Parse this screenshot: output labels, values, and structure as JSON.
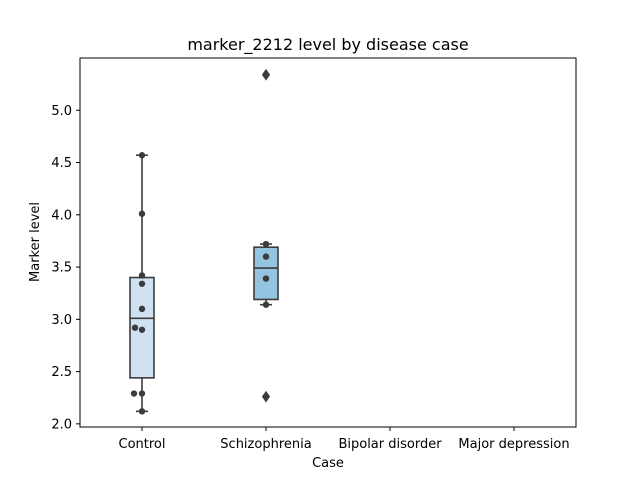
{
  "chart_data": {
    "type": "box",
    "title": "marker_2212 level by disease case",
    "xlabel": "Case",
    "ylabel": "Marker level",
    "categories": [
      "Control",
      "Schizophrenia",
      "Bipolar disorder",
      "Major depression"
    ],
    "ylim": [
      1.97,
      5.5
    ],
    "yticks": [
      2.0,
      2.5,
      3.0,
      3.5,
      4.0,
      4.5,
      5.0
    ],
    "ytick_labels": [
      "2.0",
      "2.5",
      "3.0",
      "3.5",
      "4.0",
      "4.5",
      "5.0"
    ],
    "grid": false,
    "colors": {
      "box_fill": [
        "#d0e1f2",
        "#94c4df"
      ],
      "box_edge": "#3c3c3c",
      "points": "#3c3c3c"
    },
    "boxes": [
      {
        "category": "Control",
        "q1": 2.44,
        "median": 3.01,
        "q3": 3.4,
        "whisker_low": 2.12,
        "whisker_high": 4.57,
        "outliers": []
      },
      {
        "category": "Schizophrenia",
        "q1": 3.19,
        "median": 3.49,
        "q3": 3.69,
        "whisker_low": 3.14,
        "whisker_high": 3.72,
        "outliers": [
          2.26,
          5.34
        ]
      },
      {
        "category": "Bipolar disorder",
        "empty": true
      },
      {
        "category": "Major depression",
        "empty": true
      }
    ],
    "points": [
      {
        "category": "Control",
        "values": [
          4.57,
          4.01,
          3.42,
          3.34,
          3.1,
          2.92,
          2.9,
          2.29,
          2.29,
          2.12
        ],
        "jitter": [
          0,
          0,
          0,
          0,
          0,
          -7,
          0,
          -8,
          0,
          0
        ]
      },
      {
        "category": "Schizophrenia",
        "values": [
          3.72,
          3.6,
          3.39,
          3.14,
          2.26,
          5.34
        ],
        "jitter": [
          0,
          0,
          0,
          0,
          0,
          0
        ]
      }
    ]
  }
}
